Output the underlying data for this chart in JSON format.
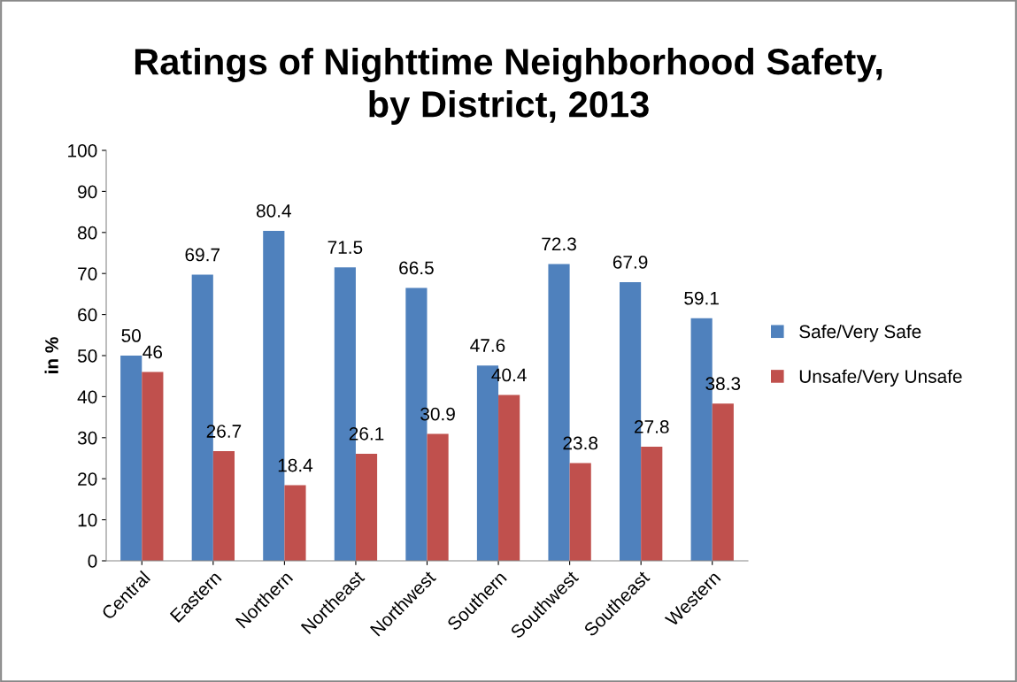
{
  "chart_data": {
    "type": "bar",
    "title": "Ratings of Nighttime Neighborhood Safety,\nby District, 2013",
    "ylabel": "in %",
    "categories": [
      "Central",
      "Eastern",
      "Northern",
      "Northeast",
      "Northwest",
      "Southern",
      "Southwest",
      "Southeast",
      "Western"
    ],
    "series": [
      {
        "name": "Safe/Very Safe",
        "color": "#4f81bd",
        "values": [
          50,
          69.7,
          80.4,
          71.5,
          66.5,
          47.6,
          72.3,
          67.9,
          59.1
        ]
      },
      {
        "name": "Unsafe/Very Unsafe",
        "color": "#c0504d",
        "values": [
          46,
          26.7,
          18.4,
          26.1,
          30.9,
          40.4,
          23.8,
          27.8,
          38.3
        ]
      }
    ],
    "ylim": [
      0,
      100
    ],
    "yticks": [
      0,
      10,
      20,
      30,
      40,
      50,
      60,
      70,
      80,
      90,
      100
    ],
    "grid": false,
    "legend": "right",
    "data_labels": true
  }
}
